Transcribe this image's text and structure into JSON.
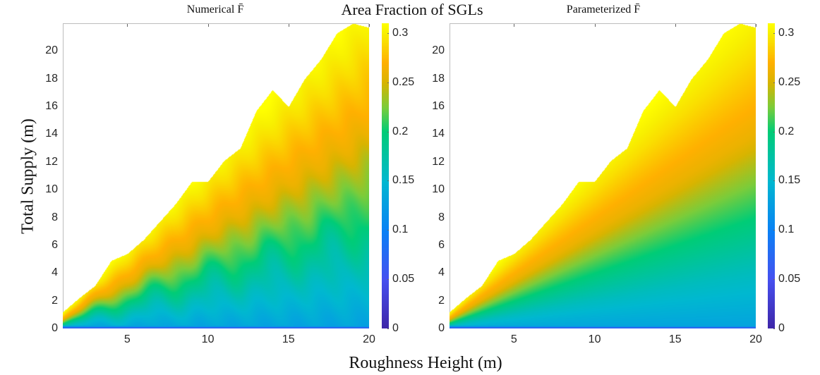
{
  "titles": {
    "main": "Area Fraction of SGLs",
    "left": "Numerical F̄",
    "right": "Parameterized F̄",
    "xlabel": "Roughness Height (m)",
    "ylabel": "Total Supply (m)"
  },
  "chart_data": [
    {
      "type": "heatmap",
      "title": "Numerical F̄",
      "xlabel": "Roughness Height (m)",
      "ylabel": "Total Supply (m)",
      "xlim": [
        1,
        20
      ],
      "ylim": [
        0,
        22
      ],
      "xticks": [
        "5",
        "10",
        "15",
        "20"
      ],
      "yticks": [
        "0",
        "2",
        "4",
        "6",
        "8",
        "10",
        "12",
        "14",
        "16",
        "18",
        "20"
      ],
      "x": [
        1,
        2,
        3,
        4,
        5,
        6,
        7,
        8,
        9,
        10,
        11,
        12,
        13,
        14,
        15,
        16,
        17,
        18,
        19,
        20
      ],
      "upper_boundary": [
        1.2,
        2.2,
        3.1,
        4.9,
        5.4,
        6.4,
        7.7,
        9.0,
        10.6,
        10.6,
        12.1,
        13.0,
        15.7,
        17.2,
        16.0,
        18.0,
        19.4,
        21.3,
        22.0,
        21.7
      ],
      "colorbar": {
        "clim": [
          0,
          0.31
        ],
        "ticks": [
          "0",
          "0.05",
          "0.1",
          "0.15",
          "0.2",
          "0.25",
          "0.3"
        ],
        "colormap": "parula"
      }
    },
    {
      "type": "heatmap",
      "title": "Parameterized F̄",
      "xlabel": "Roughness Height (m)",
      "ylabel": "Total Supply (m)",
      "xlim": [
        1,
        20
      ],
      "ylim": [
        0,
        22
      ],
      "xticks": [
        "5",
        "10",
        "15",
        "20"
      ],
      "yticks": [
        "0",
        "2",
        "4",
        "6",
        "8",
        "10",
        "12",
        "14",
        "16",
        "18",
        "20"
      ],
      "x": [
        1,
        2,
        3,
        4,
        5,
        6,
        7,
        8,
        9,
        10,
        11,
        12,
        13,
        14,
        15,
        16,
        17,
        18,
        19,
        20
      ],
      "upper_boundary": [
        1.2,
        2.2,
        3.1,
        4.9,
        5.4,
        6.4,
        7.7,
        9.0,
        10.6,
        10.6,
        12.1,
        13.0,
        15.7,
        17.2,
        16.0,
        18.0,
        19.4,
        21.3,
        22.0,
        21.7
      ],
      "colorbar": {
        "clim": [
          0,
          0.31
        ],
        "ticks": [
          "0",
          "0.05",
          "0.1",
          "0.15",
          "0.2",
          "0.25",
          "0.3"
        ],
        "colormap": "parula"
      }
    }
  ]
}
